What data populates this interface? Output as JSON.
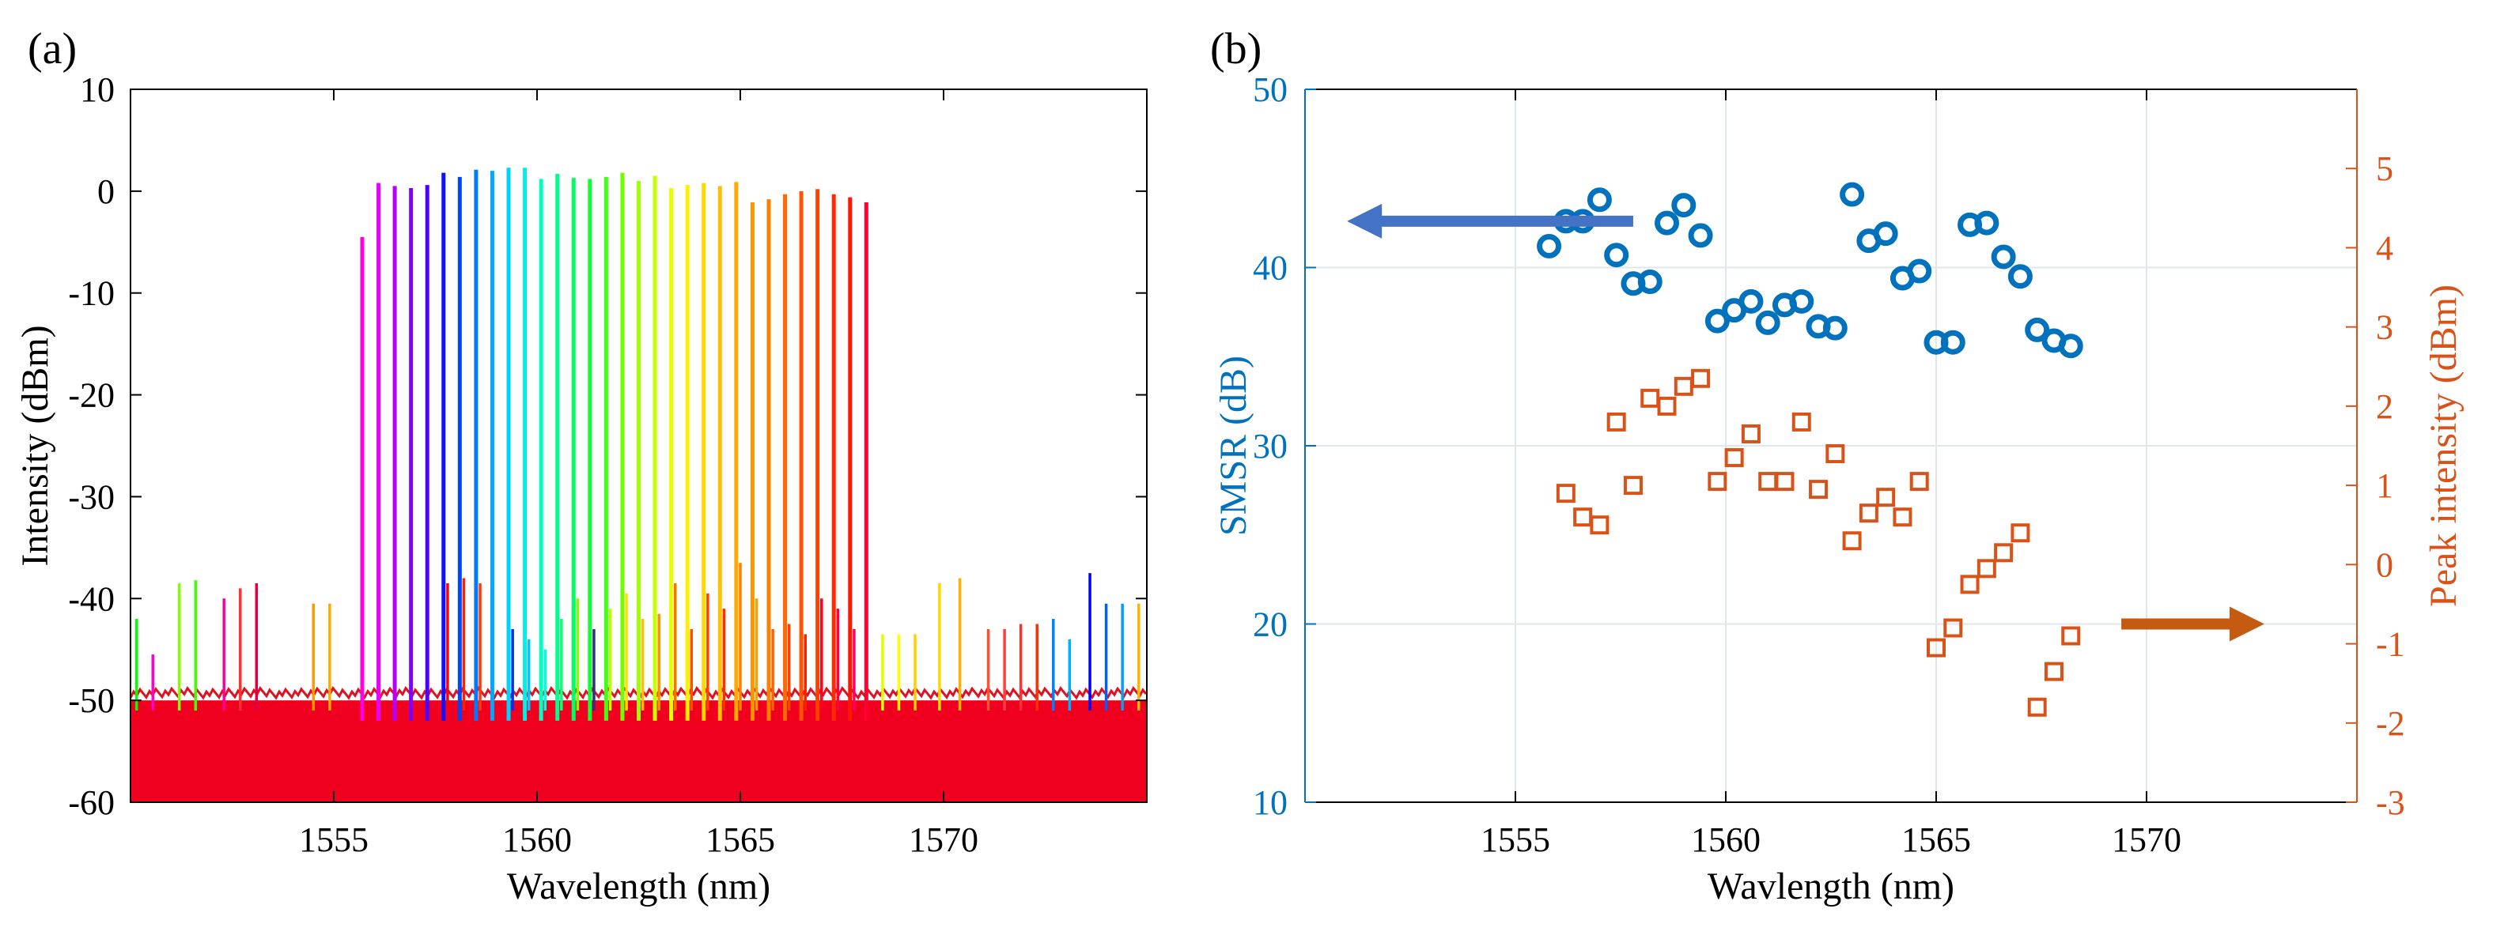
{
  "figure": {
    "panel_a_label": "(a)",
    "panel_b_label": "(b)"
  },
  "chart_data": [
    {
      "type": "line",
      "panel": "(a)",
      "xlabel": "Wavelength (nm)",
      "ylabel": "Intensity (dBm)",
      "xlim": [
        1550,
        1575
      ],
      "ylim": [
        -60,
        10
      ],
      "xticks": [
        1555,
        1560,
        1565,
        1570
      ],
      "xtick_labels": [
        "1555",
        "1560",
        "1565",
        "1570"
      ],
      "yticks": [
        -60,
        -50,
        -40,
        -30,
        -20,
        -10,
        0,
        10
      ],
      "ytick_labels": [
        "-60",
        "-50",
        "-40",
        "-30",
        "-20",
        "-10",
        "0",
        "10"
      ],
      "grid": false,
      "noise_floor_dBm": [
        -60,
        -50
      ],
      "series_description": "Overlaid tunable single-mode laser spectra (rainbow colors); main lasing peaks with weaker side-mode peaks",
      "main_peaks": {
        "wavelength_nm": [
          1555.7,
          1556.1,
          1556.5,
          1556.9,
          1557.3,
          1557.7,
          1558.1,
          1558.5,
          1558.9,
          1559.3,
          1559.7,
          1560.1,
          1560.5,
          1560.9,
          1561.3,
          1561.7,
          1562.1,
          1562.5,
          1562.9,
          1563.3,
          1563.7,
          1564.1,
          1564.5,
          1564.9,
          1565.3,
          1565.7,
          1566.1,
          1566.5,
          1566.9,
          1567.3,
          1567.7,
          1568.1
        ],
        "intensity_dBm": [
          -4.5,
          0.8,
          0.5,
          0.3,
          0.6,
          1.8,
          1.4,
          2.1,
          2.0,
          2.3,
          2.3,
          1.2,
          1.7,
          1.3,
          1.2,
          1.4,
          1.8,
          1.0,
          1.5,
          0.3,
          0.6,
          0.8,
          0.5,
          0.9,
          -1.1,
          -0.8,
          -0.3,
          0.0,
          0.2,
          -0.3,
          -0.6,
          -1.1
        ],
        "colors": [
          "#ff00e0",
          "#e600ff",
          "#b400ff",
          "#8000ff",
          "#4b00ff",
          "#1010ff",
          "#0045ff",
          "#0078ff",
          "#00a8ff",
          "#00d2ff",
          "#00f0e8",
          "#00ffc0",
          "#00ff90",
          "#00ff60",
          "#10ff30",
          "#40ff10",
          "#70ff00",
          "#a0ff00",
          "#c8ff00",
          "#e8ff00",
          "#fff000",
          "#ffd800",
          "#ffc000",
          "#ffaa00",
          "#ff9400",
          "#ff8000",
          "#ff6a00",
          "#ff5500",
          "#ff4000",
          "#ff2b00",
          "#ff1500",
          "#ff0030"
        ]
      },
      "side_mode_peaks": {
        "wavelength_nm": [
          1550.15,
          1550.55,
          1551.2,
          1551.6,
          1552.3,
          1552.7,
          1553.1,
          1554.5,
          1554.9,
          1557.8,
          1558.2,
          1558.6,
          1559.4,
          1559.8,
          1560.2,
          1560.6,
          1561.0,
          1561.4,
          1561.8,
          1562.2,
          1562.6,
          1563.0,
          1563.4,
          1563.8,
          1564.2,
          1564.6,
          1565.0,
          1565.4,
          1565.8,
          1566.2,
          1566.6,
          1567.0,
          1567.4,
          1567.8,
          1568.5,
          1568.9,
          1569.3,
          1569.9,
          1570.4,
          1571.1,
          1571.5,
          1571.9,
          1572.3,
          1572.7,
          1573.1,
          1573.6,
          1574.0,
          1574.4,
          1574.8
        ],
        "intensity_dBm": [
          -42,
          -45.5,
          -38.5,
          -38.2,
          -40,
          -39,
          -38.5,
          -40.5,
          -40.5,
          -38.5,
          -38,
          -38.5,
          -43,
          -44,
          -45,
          -42,
          -40,
          -43,
          -41,
          -39.5,
          -42,
          -41.5,
          -38.5,
          -43,
          -39.5,
          -41,
          -36.5,
          -40,
          -43,
          -42.5,
          -43.5,
          -40,
          -41,
          -43,
          -43.5,
          -43.5,
          -43.5,
          -38.5,
          -38,
          -43,
          -43,
          -42.5,
          -42.5,
          -42,
          -44,
          -37.5,
          -40.5,
          -40.5,
          -40.5
        ],
        "colors": [
          "#00ff00",
          "#ff00d0",
          "#80ff00",
          "#40ff00",
          "#ff00a0",
          "#ff3030",
          "#e00040",
          "#ff9900",
          "#ffaa00",
          "#ff0000",
          "#ff2000",
          "#ff3a00",
          "#0030ff",
          "#00c8ff",
          "#00ffe0",
          "#10ff70",
          "#80ff00",
          "#303080",
          "#c0ff00",
          "#ffe000",
          "#ffc000",
          "#ff9000",
          "#ff7000",
          "#ff5000",
          "#ff4000",
          "#ff3000",
          "#ff8000",
          "#ffa000",
          "#ff6000",
          "#ff4000",
          "#ff2000",
          "#ff0020",
          "#ff0040",
          "#ff0060",
          "#e0ff00",
          "#ffff00",
          "#ffd000",
          "#ffd700",
          "#ffb000",
          "#ff5030",
          "#ff4040",
          "#ff3030",
          "#ff3000",
          "#0080ff",
          "#00b0ff",
          "#0000ff",
          "#0060ff",
          "#00a0ff",
          "#ffb400"
        ]
      }
    },
    {
      "type": "scatter",
      "panel": "(b)",
      "xlabel": "Wavlength (nm)",
      "ylabel_left": "SMSR (dB)",
      "ylabel_right": "Peak intensity (dBm)",
      "xlim": [
        1550,
        1575
      ],
      "ylim_left": [
        10,
        50
      ],
      "ylim_right": [
        -3,
        6
      ],
      "xticks": [
        1555,
        1560,
        1565,
        1570
      ],
      "xtick_labels": [
        "1555",
        "1560",
        "1565",
        "1570"
      ],
      "yticks_left": [
        10,
        20,
        30,
        40,
        50
      ],
      "ytick_labels_left": [
        "10",
        "20",
        "30",
        "40",
        "50"
      ],
      "yticks_right": [
        -3,
        -2,
        -1,
        0,
        1,
        2,
        3,
        4,
        5
      ],
      "ytick_labels_right": [
        "-3",
        "-2",
        "-1",
        "0",
        "1",
        "2",
        "3",
        "4",
        "5"
      ],
      "grid": true,
      "colors": {
        "smsr": "#0072bd",
        "peak": "#d95319",
        "left_arrow": "#4472c4",
        "right_arrow": "#c55a11"
      },
      "series": [
        {
          "name": "SMSR (dB)",
          "axis": "left",
          "marker": "circle",
          "x": [
            1555.8,
            1556.2,
            1556.6,
            1557.0,
            1557.4,
            1557.8,
            1558.2,
            1558.6,
            1559.0,
            1559.4,
            1559.8,
            1560.2,
            1560.6,
            1561.0,
            1561.4,
            1561.8,
            1562.2,
            1562.6,
            1563.0,
            1563.4,
            1563.8,
            1564.2,
            1564.6,
            1565.0,
            1565.4,
            1565.8,
            1566.2,
            1566.6,
            1567.0,
            1567.4,
            1567.8,
            1568.2
          ],
          "y": [
            41.2,
            42.6,
            42.6,
            43.8,
            40.7,
            39.1,
            39.2,
            42.5,
            43.5,
            41.8,
            37.0,
            37.6,
            38.1,
            36.9,
            37.9,
            38.1,
            36.7,
            36.6,
            44.1,
            41.5,
            41.9,
            39.4,
            39.8,
            35.8,
            35.8,
            42.4,
            42.5,
            40.6,
            39.5,
            36.5,
            35.9,
            35.6
          ]
        },
        {
          "name": "Peak intensity (dBm)",
          "axis": "right",
          "marker": "square",
          "x": [
            1556.2,
            1556.6,
            1557.0,
            1557.4,
            1557.8,
            1558.2,
            1558.6,
            1559.0,
            1559.4,
            1559.8,
            1560.2,
            1560.6,
            1561.0,
            1561.4,
            1561.8,
            1562.2,
            1562.6,
            1563.0,
            1563.4,
            1563.8,
            1564.2,
            1564.6,
            1565.0,
            1565.4,
            1565.8,
            1566.2,
            1566.6,
            1567.0,
            1567.4,
            1567.8,
            1568.2
          ],
          "y": [
            0.9,
            0.6,
            0.5,
            1.8,
            1.0,
            2.1,
            2.0,
            2.25,
            2.35,
            1.05,
            1.35,
            1.65,
            1.05,
            1.05,
            1.8,
            0.95,
            1.4,
            0.3,
            0.65,
            0.85,
            0.6,
            1.05,
            -1.05,
            -0.8,
            -0.25,
            -0.05,
            0.15,
            0.4,
            -1.8,
            -1.35,
            -0.9
          ]
        }
      ]
    }
  ]
}
